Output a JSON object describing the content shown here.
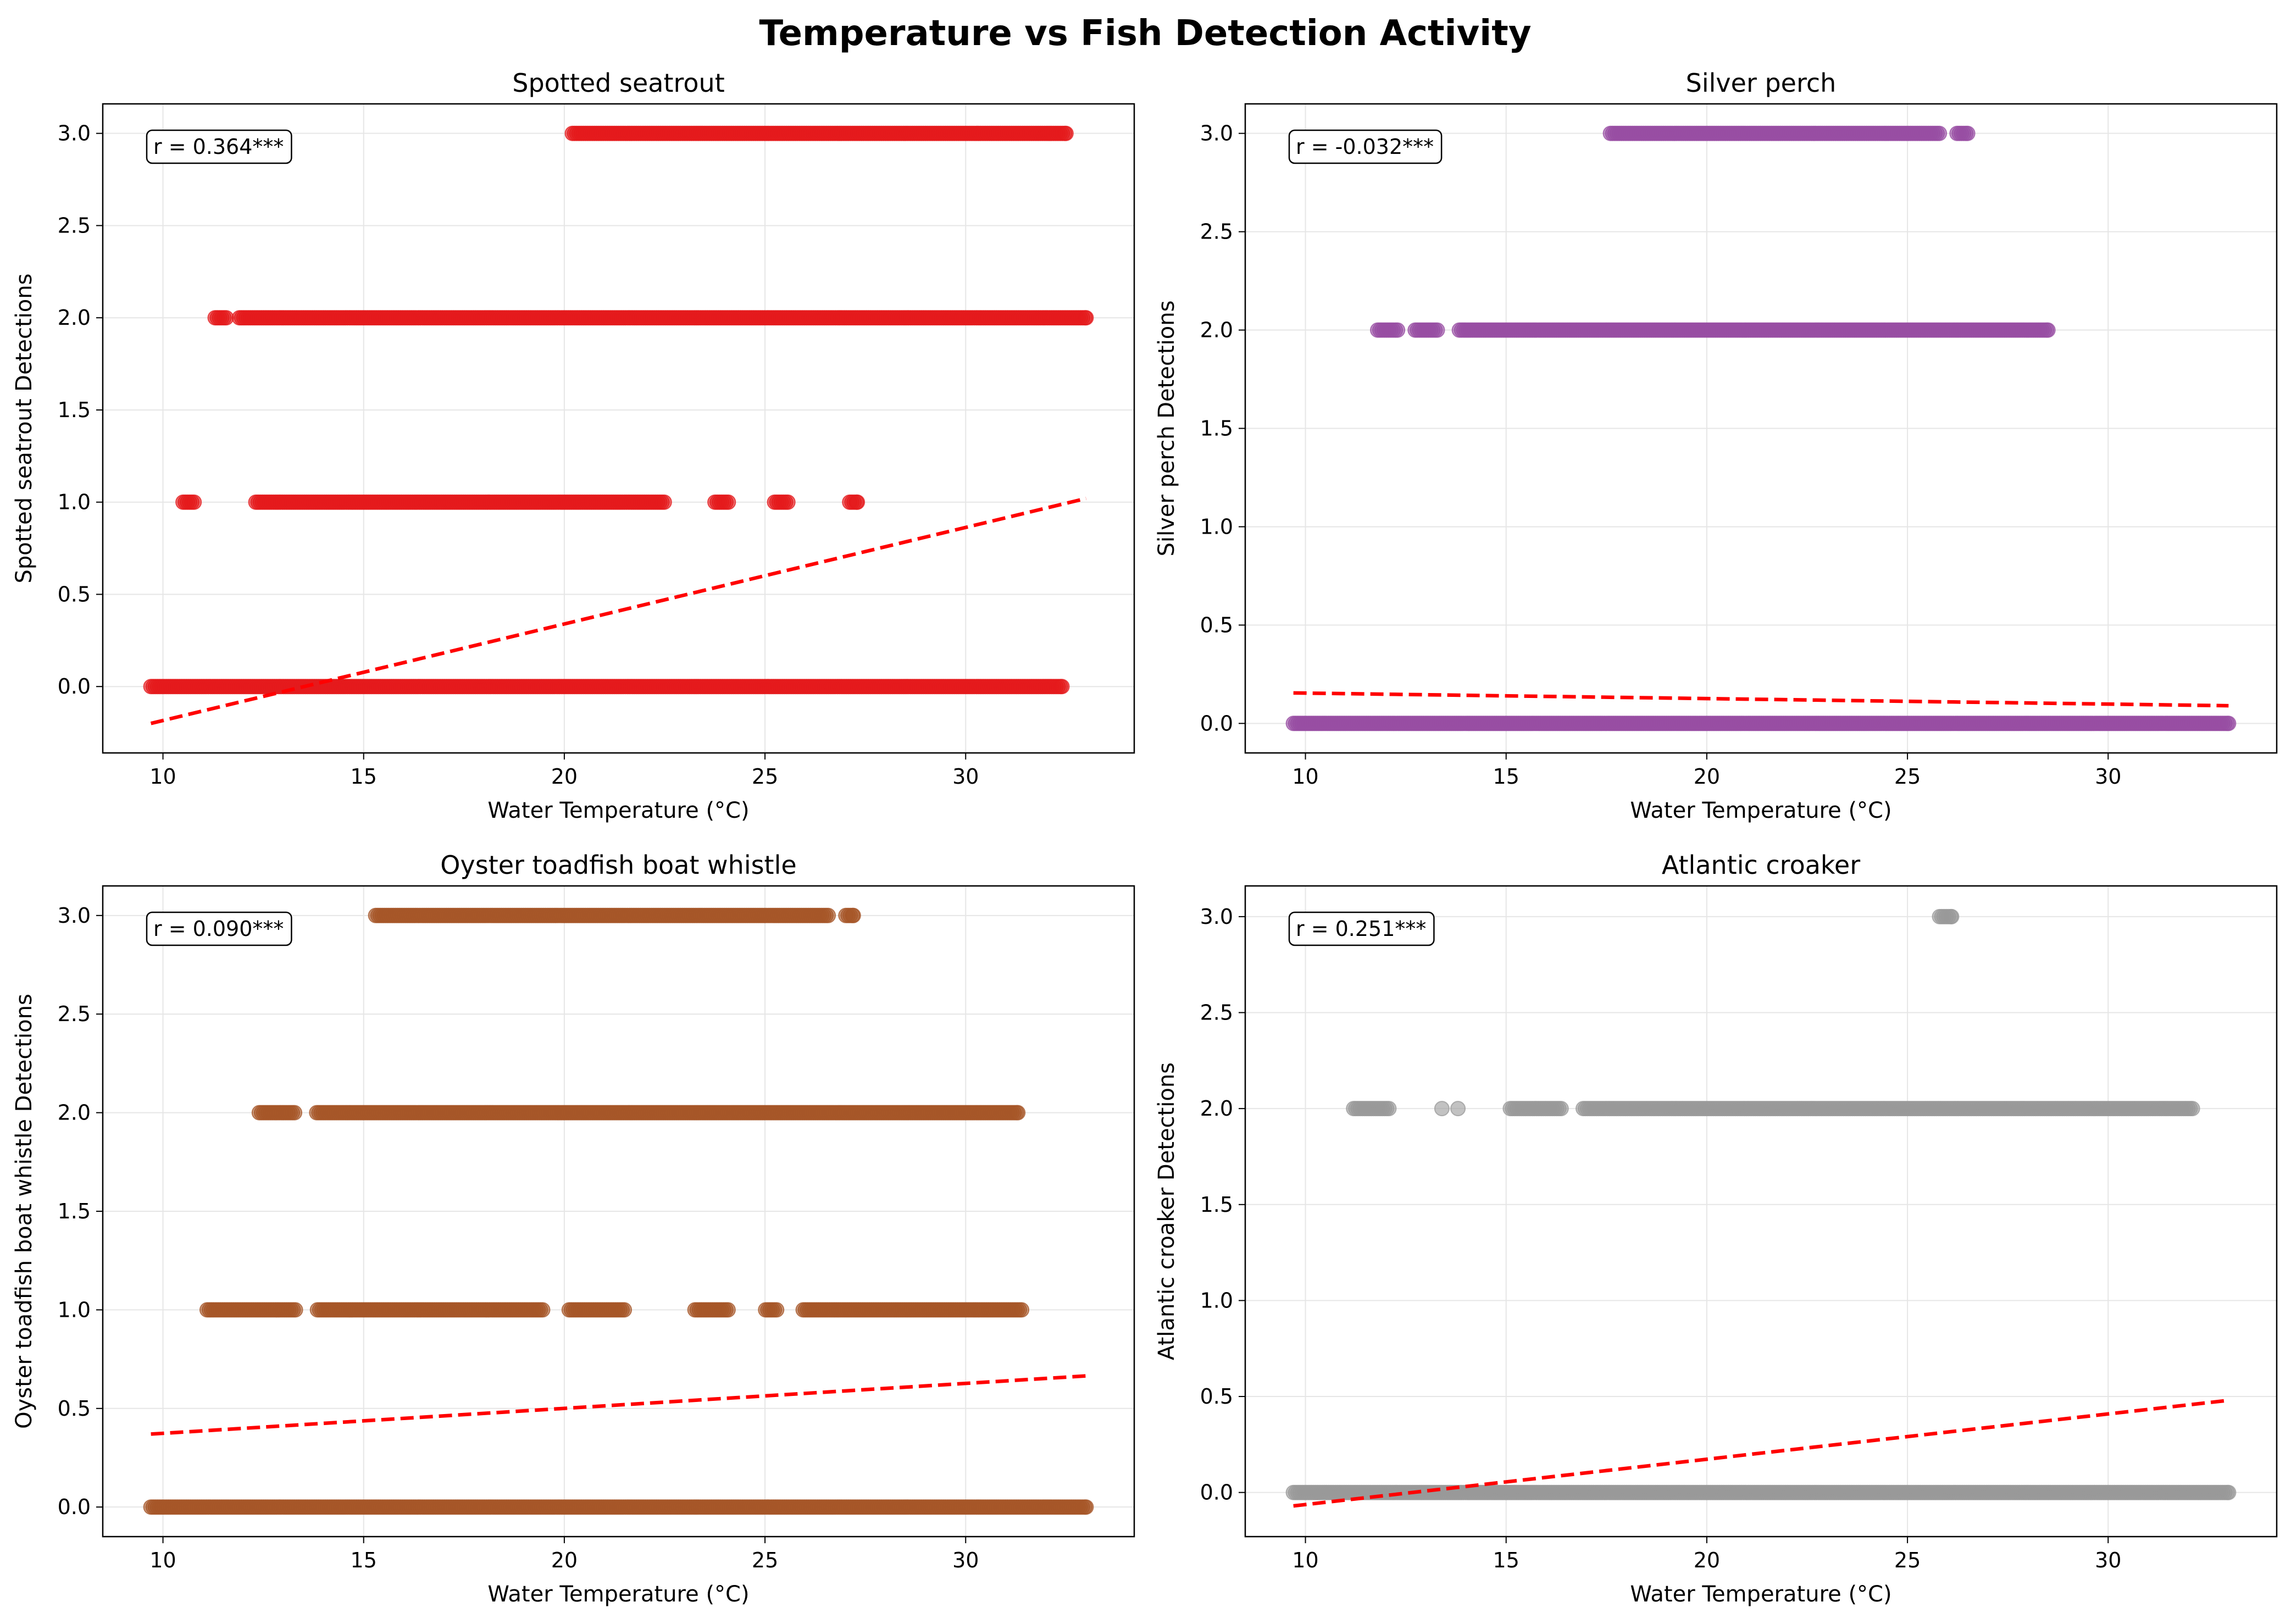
{
  "figure": {
    "suptitle": "Temperature vs Fish Detection Activity"
  },
  "chart_data": [
    {
      "type": "scatter",
      "title": "Spotted seatrout",
      "xlabel": "Water Temperature (°C)",
      "ylabel": "Spotted seatrout Detections",
      "xlim": [
        8.5,
        34.2
      ],
      "ylim": [
        -0.36,
        3.16
      ],
      "xticks": [
        "10",
        "15",
        "20",
        "25",
        "30"
      ],
      "yticks": [
        "0.0",
        "0.5",
        "1.0",
        "1.5",
        "2.0",
        "2.5",
        "3.0"
      ],
      "grid": true,
      "color": "#e41a1c",
      "annotation": "r = 0.364***",
      "trend": {
        "x": [
          9.7,
          33.0
        ],
        "y": [
          -0.2,
          1.02
        ]
      },
      "levels": [
        {
          "y": 0,
          "min": 9.7,
          "max": 32.4,
          "gaps": [],
          "extra": []
        },
        {
          "y": 1,
          "min": 10.5,
          "max": 27.3,
          "gaps": [
            [
              10.8,
              12.3
            ],
            [
              22.5,
              23.7
            ],
            [
              24.1,
              25.2
            ],
            [
              25.6,
              27.1
            ]
          ],
          "extra": []
        },
        {
          "y": 2,
          "min": 11.3,
          "max": 33.0,
          "gaps": [
            [
              11.6,
              11.9
            ]
          ],
          "extra": []
        },
        {
          "y": 3,
          "min": 20.2,
          "max": 32.5,
          "gaps": [],
          "extra": []
        }
      ]
    },
    {
      "type": "scatter",
      "title": "Silver perch",
      "xlabel": "Water Temperature (°C)",
      "ylabel": "Silver perch Detections",
      "xlim": [
        8.5,
        34.2
      ],
      "ylim": [
        -0.15,
        3.15
      ],
      "xticks": [
        "10",
        "15",
        "20",
        "25",
        "30"
      ],
      "yticks": [
        "0.0",
        "0.5",
        "1.0",
        "1.5",
        "2.0",
        "2.5",
        "3.0"
      ],
      "grid": true,
      "color": "#984ea3",
      "annotation": "r = -0.032***",
      "trend": {
        "x": [
          9.7,
          33.0
        ],
        "y": [
          0.155,
          0.09
        ]
      },
      "levels": [
        {
          "y": 0,
          "min": 9.7,
          "max": 33.0,
          "gaps": [],
          "extra": []
        },
        {
          "y": 2,
          "min": 11.8,
          "max": 28.5,
          "gaps": [
            [
              12.3,
              12.7
            ],
            [
              13.3,
              13.8
            ]
          ],
          "extra": []
        },
        {
          "y": 3,
          "min": 17.6,
          "max": 26.5,
          "gaps": [
            [
              25.8,
              26.2
            ]
          ],
          "extra": []
        }
      ]
    },
    {
      "type": "scatter",
      "title": "Oyster toadfish boat whistle",
      "xlabel": "Water Temperature (°C)",
      "ylabel": "Oyster toadfish boat whistle Detections",
      "xlim": [
        8.5,
        34.2
      ],
      "ylim": [
        -0.15,
        3.15
      ],
      "xticks": [
        "10",
        "15",
        "20",
        "25",
        "30"
      ],
      "yticks": [
        "0.0",
        "0.5",
        "1.0",
        "1.5",
        "2.0",
        "2.5",
        "3.0"
      ],
      "grid": true,
      "color": "#a65628",
      "annotation": "r = 0.090***",
      "trend": {
        "x": [
          9.7,
          33.0
        ],
        "y": [
          0.37,
          0.665
        ]
      },
      "levels": [
        {
          "y": 0,
          "min": 9.7,
          "max": 33.0,
          "gaps": [],
          "extra": []
        },
        {
          "y": 1,
          "min": 11.1,
          "max": 31.4,
          "gaps": [
            [
              13.3,
              13.8
            ],
            [
              19.5,
              20.1
            ],
            [
              21.5,
              23.2
            ],
            [
              24.1,
              25.0
            ],
            [
              25.3,
              25.9
            ]
          ],
          "extra": []
        },
        {
          "y": 2,
          "min": 12.4,
          "max": 31.3,
          "gaps": [
            [
              13.3,
              13.8
            ]
          ],
          "extra": []
        },
        {
          "y": 3,
          "min": 15.3,
          "max": 27.2,
          "gaps": [
            [
              26.6,
              27.0
            ]
          ],
          "extra": []
        }
      ]
    },
    {
      "type": "scatter",
      "title": "Atlantic croaker",
      "xlabel": "Water Temperature (°C)",
      "ylabel": "Atlantic croaker Detections",
      "xlim": [
        8.5,
        34.2
      ],
      "ylim": [
        -0.23,
        3.16
      ],
      "xticks": [
        "10",
        "15",
        "20",
        "25",
        "30"
      ],
      "yticks": [
        "0.0",
        "0.5",
        "1.0",
        "1.5",
        "2.0",
        "2.5",
        "3.0"
      ],
      "grid": true,
      "color": "#999999",
      "annotation": "r = 0.251***",
      "trend": {
        "x": [
          9.7,
          33.0
        ],
        "y": [
          -0.07,
          0.48
        ]
      },
      "levels": [
        {
          "y": 0,
          "min": 9.7,
          "max": 33.0,
          "gaps": [],
          "extra": []
        },
        {
          "y": 2,
          "min": 11.2,
          "max": 32.1,
          "gaps": [
            [
              12.1,
              15.1
            ],
            [
              16.4,
              16.9
            ]
          ],
          "extra": [
            13.4,
            13.8
          ]
        },
        {
          "y": 3,
          "min": 25.8,
          "max": 26.1,
          "gaps": [],
          "extra": []
        }
      ]
    }
  ]
}
